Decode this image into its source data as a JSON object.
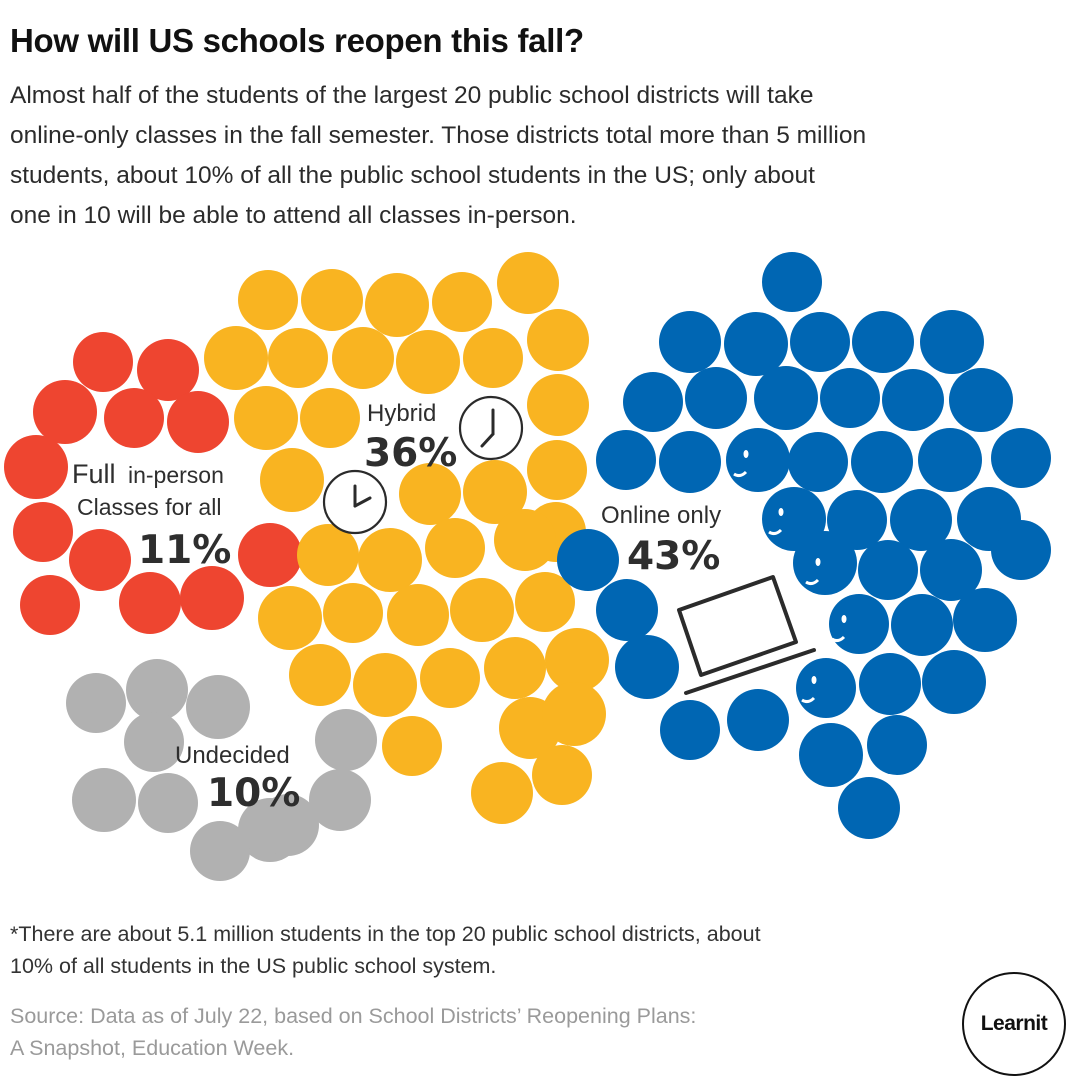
{
  "header": {
    "title": "How will US schools reopen this fall?",
    "subtitle_lines": [
      "Almost half of the students of the largest 20 public school districts will take",
      "online-only classes in the fall semester. Those districts total more than 5 million",
      "students, about 10% of all the public school students in the US; only about",
      "one in 10 will be able to attend all classes in-person."
    ]
  },
  "chart_data": {
    "type": "pie",
    "title": "How will US schools reopen this fall?",
    "representation": "clustered dot groups (each dot ≈ 1% of students)",
    "categories": [
      "Full in-person classes for all",
      "Hybrid",
      "Online only",
      "Undecided"
    ],
    "values": [
      11,
      36,
      43,
      10
    ],
    "unit": "% of students in the top 20 public school districts",
    "series": [
      {
        "name": "Full in-person",
        "label_lines": [
          "Full",
          "in-person",
          "Classes for all"
        ],
        "value": 11,
        "value_label": "11%",
        "color": "#ee4530"
      },
      {
        "name": "Hybrid",
        "label_lines": [
          "Hybrid"
        ],
        "value": 36,
        "value_label": "36%",
        "color": "#f9b421"
      },
      {
        "name": "Online only",
        "label_lines": [
          "Online only"
        ],
        "value": 43,
        "value_label": "43%",
        "color": "#0066b3"
      },
      {
        "name": "Undecided",
        "label_lines": [
          "Undecided"
        ],
        "value": 10,
        "value_label": "10%",
        "color": "#b1b1b1"
      }
    ],
    "icons": [
      "clock-icon",
      "clock-icon",
      "laptop-icon",
      "face-icon"
    ]
  },
  "footer": {
    "footnote_lines": [
      "*There are about 5.1 million students in the top 20 public school districts, about",
      "10% of all students in the US public school system."
    ],
    "source_lines": [
      "Source: Data as of July 22, based on School Districts’ Reopening Plans:",
      "A Snapshot, Education Week."
    ],
    "logo_text": "Learnit"
  }
}
